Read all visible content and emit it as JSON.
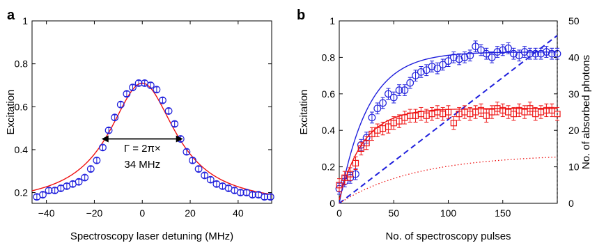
{
  "chart_data": [
    {
      "panel": "a",
      "type": "scatter",
      "xlabel": "Spectroscopy laser detuning (MHz)",
      "ylabel": "Excitation",
      "xlim": [
        -46,
        54
      ],
      "ylim": [
        0.15,
        1.0
      ],
      "xticks": [
        -40,
        -20,
        0,
        20,
        40
      ],
      "xtick_labels": [
        "−40",
        "−20",
        "0",
        "20",
        "40"
      ],
      "yticks": [
        0.2,
        0.4,
        0.6,
        0.8,
        1.0
      ],
      "ytick_labels": [
        "0.2",
        "0.4",
        "0.6",
        "0.8",
        "1"
      ],
      "grid": false,
      "series": [
        {
          "kind": "markers-errorbars",
          "marker": "circle",
          "color": "#1f1fdc",
          "x": [
            -44,
            -41.5,
            -39,
            -36.5,
            -34,
            -31.5,
            -29,
            -26.5,
            -24,
            -21.5,
            -19,
            -16.5,
            -14,
            -11.5,
            -9,
            -6.5,
            -4,
            -1.5,
            1,
            3.5,
            6,
            8.5,
            11,
            13.5,
            16,
            18.5,
            21,
            23.5,
            26,
            28.5,
            31,
            33.5,
            36,
            38.5,
            41,
            43.5,
            46,
            48.5,
            51,
            53.5
          ],
          "y": [
            0.18,
            0.19,
            0.21,
            0.21,
            0.22,
            0.23,
            0.24,
            0.25,
            0.27,
            0.31,
            0.35,
            0.41,
            0.49,
            0.55,
            0.61,
            0.66,
            0.69,
            0.71,
            0.71,
            0.7,
            0.68,
            0.63,
            0.58,
            0.52,
            0.45,
            0.39,
            0.35,
            0.31,
            0.28,
            0.26,
            0.24,
            0.23,
            0.22,
            0.21,
            0.2,
            0.2,
            0.19,
            0.19,
            0.18,
            0.18
          ],
          "err": 0.012
        },
        {
          "kind": "fit-line",
          "color": "#e11",
          "model": "lorentzian",
          "center": 0,
          "fwhm": 34,
          "peak": 0.71,
          "offset": 0.14
        }
      ],
      "annotations": [
        {
          "text": "Γ = 2π×",
          "x": 0,
          "y": 0.39
        },
        {
          "text": "34 MHz",
          "x": 0,
          "y": 0.315
        },
        {
          "kind": "double-arrow",
          "x_from": -17,
          "x_to": 17,
          "y": 0.45
        }
      ]
    },
    {
      "panel": "b",
      "type": "scatter",
      "xlabel": "No. of spectroscopy pulses",
      "ylabel": "Excitation",
      "ylabel_right": "No. of absorbed photons",
      "xlim": [
        0,
        200
      ],
      "ylim": [
        0,
        1
      ],
      "ylim_right": [
        0,
        50
      ],
      "xticks": [
        0,
        50,
        100,
        150
      ],
      "xtick_labels": [
        "0",
        "50",
        "100",
        "150"
      ],
      "yticks": [
        0,
        0.2,
        0.4,
        0.6,
        0.8,
        1
      ],
      "ytick_labels": [
        "0",
        "0.2",
        "0.4",
        "0.6",
        "0.8",
        "1"
      ],
      "yticks_right": [
        0,
        10,
        20,
        30,
        40,
        50
      ],
      "ytick_labels_right": [
        "0",
        "10",
        "20",
        "30",
        "40",
        "50"
      ],
      "grid": false,
      "series": [
        {
          "kind": "markers-errorbars",
          "marker": "circle",
          "color": "#1f1fdc",
          "x": [
            0,
            5,
            10,
            15,
            20,
            25,
            30,
            35,
            40,
            45,
            50,
            55,
            60,
            65,
            70,
            75,
            80,
            85,
            90,
            95,
            100,
            105,
            110,
            115,
            120,
            125,
            130,
            135,
            140,
            145,
            150,
            155,
            160,
            165,
            170,
            175,
            180,
            185,
            190,
            195,
            200
          ],
          "y": [
            0.08,
            0.12,
            0.14,
            0.16,
            0.32,
            0.36,
            0.47,
            0.52,
            0.55,
            0.6,
            0.58,
            0.62,
            0.62,
            0.66,
            0.7,
            0.72,
            0.73,
            0.75,
            0.74,
            0.76,
            0.78,
            0.8,
            0.79,
            0.8,
            0.81,
            0.86,
            0.84,
            0.82,
            0.8,
            0.83,
            0.84,
            0.85,
            0.82,
            0.81,
            0.83,
            0.82,
            0.82,
            0.82,
            0.83,
            0.82,
            0.82
          ],
          "err": 0.03
        },
        {
          "kind": "markers-errorbars",
          "marker": "square",
          "color": "#e11",
          "x": [
            0,
            5,
            10,
            15,
            20,
            25,
            30,
            35,
            40,
            45,
            50,
            55,
            60,
            65,
            70,
            75,
            80,
            85,
            90,
            95,
            100,
            105,
            110,
            115,
            120,
            125,
            130,
            135,
            140,
            145,
            150,
            155,
            160,
            165,
            170,
            175,
            180,
            185,
            190,
            195,
            200
          ],
          "y": [
            0.1,
            0.14,
            0.16,
            0.22,
            0.3,
            0.33,
            0.38,
            0.4,
            0.41,
            0.42,
            0.44,
            0.45,
            0.47,
            0.48,
            0.48,
            0.49,
            0.48,
            0.49,
            0.5,
            0.49,
            0.5,
            0.44,
            0.49,
            0.5,
            0.49,
            0.5,
            0.51,
            0.48,
            0.5,
            0.52,
            0.51,
            0.5,
            0.49,
            0.51,
            0.5,
            0.52,
            0.49,
            0.5,
            0.51,
            0.51,
            0.49
          ],
          "err": 0.035
        },
        {
          "kind": "fit-line",
          "color": "#1f1fdc",
          "model": "saturation",
          "amplitude": 0.83,
          "rate": 0.038,
          "offset": 0
        },
        {
          "kind": "fit-line",
          "color": "#e11",
          "model": "saturation",
          "amplitude": 0.5,
          "rate": 0.045,
          "offset": 0.02
        },
        {
          "kind": "line",
          "style": "dashed",
          "color": "#1f1fdc",
          "axis": "right",
          "x": [
            0,
            200
          ],
          "y": [
            0,
            46
          ]
        },
        {
          "kind": "line",
          "style": "dotted",
          "color": "#e11",
          "axis": "right",
          "model": "saturation",
          "amplitude": 13.5,
          "rate": 0.014
        }
      ]
    }
  ],
  "panels": {
    "a": {
      "label": "a",
      "annotation_line1": "Γ = 2π×",
      "annotation_line2": "34 MHz"
    },
    "b": {
      "label": "b"
    }
  }
}
